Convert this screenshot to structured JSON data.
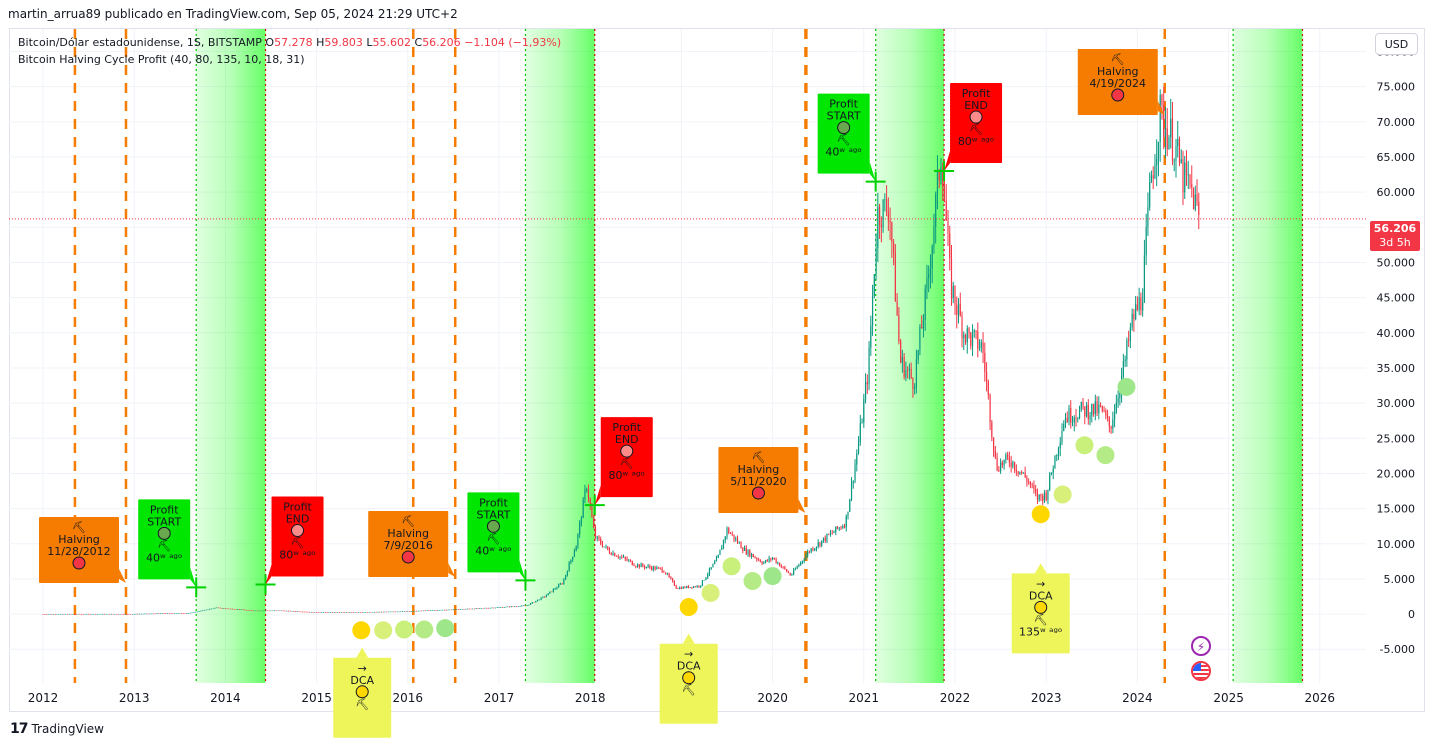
{
  "header": {
    "publisher": "martin_arrua89 publicado en TradingView.com, Sep 05, 2024 21:29 UTC+2"
  },
  "legend": {
    "symbol": "Bitcoin/Dólar estadounidense, 1S, BITSTAMP",
    "o_label": "O",
    "o_value": "57.278",
    "h_label": "H",
    "h_value": "59.803",
    "l_label": "L",
    "l_value": "55.602",
    "c_label": "C",
    "c_value": "56.206",
    "change": "−1.104 (−1,93%)",
    "indicator": "Bitcoin Halving Cycle Profit (40, 80, 135, 10, 18, 31)"
  },
  "currency_button": "USD",
  "last_price": {
    "value": "56.206",
    "countdown": "3d 5h"
  },
  "footer": {
    "logo": "17",
    "brand": "TradingView"
  },
  "colors": {
    "up": "#089981",
    "down": "#f23645",
    "halving": "#f57c00",
    "profit_start": "#00e600",
    "profit_end": "#ff0000",
    "dca": "#eef55a",
    "zone": "#00ff00",
    "axis_text": "#131722"
  },
  "icons": {
    "halving": "pickaxe-icon",
    "profit": "circle-icon",
    "dca": "arrow-right-icon",
    "flash": "lightning-icon",
    "flag": "us-flag-icon"
  },
  "chart_data": {
    "type": "candlestick",
    "title": "Bitcoin/Dólar estadounidense, 1S, BITSTAMP",
    "x_ticks": [
      "2012",
      "2013",
      "2014",
      "2015",
      "2016",
      "2017",
      "2018",
      "2019",
      "2020",
      "2021",
      "2022",
      "2023",
      "2024",
      "2025",
      "2026"
    ],
    "y_ticks": [
      "80.000",
      "75.000",
      "70.000",
      "65.000",
      "60.000",
      "55.000",
      "50.000",
      "45.000",
      "40.000",
      "35.000",
      "30.000",
      "25.000",
      "20.000",
      "15.000",
      "10.000",
      "5.000",
      "0",
      "-5.000"
    ],
    "ylim": [
      -9800,
      83200
    ],
    "price_path": [
      [
        2012.0,
        5
      ],
      [
        2012.5,
        8
      ],
      [
        2013.0,
        13
      ],
      [
        2013.3,
        100
      ],
      [
        2013.6,
        120
      ],
      [
        2013.9,
        900
      ],
      [
        2014.0,
        800
      ],
      [
        2014.3,
        500
      ],
      [
        2014.6,
        500
      ],
      [
        2015.0,
        250
      ],
      [
        2015.5,
        250
      ],
      [
        2016.0,
        400
      ],
      [
        2016.5,
        650
      ],
      [
        2017.0,
        950
      ],
      [
        2017.3,
        1200
      ],
      [
        2017.5,
        2500
      ],
      [
        2017.7,
        4500
      ],
      [
        2017.85,
        10000
      ],
      [
        2017.96,
        18500
      ],
      [
        2018.05,
        11000
      ],
      [
        2018.2,
        9000
      ],
      [
        2018.5,
        7000
      ],
      [
        2018.8,
        6300
      ],
      [
        2018.95,
        3700
      ],
      [
        2019.2,
        4000
      ],
      [
        2019.4,
        8000
      ],
      [
        2019.5,
        12000
      ],
      [
        2019.7,
        9000
      ],
      [
        2019.9,
        7300
      ],
      [
        2020.0,
        8000
      ],
      [
        2020.2,
        5500
      ],
      [
        2020.4,
        9000
      ],
      [
        2020.6,
        11000
      ],
      [
        2020.8,
        13000
      ],
      [
        2020.95,
        25000
      ],
      [
        2021.05,
        35000
      ],
      [
        2021.15,
        57000
      ],
      [
        2021.28,
        58000
      ],
      [
        2021.4,
        36000
      ],
      [
        2021.55,
        33000
      ],
      [
        2021.7,
        47000
      ],
      [
        2021.85,
        66000
      ],
      [
        2021.95,
        47000
      ],
      [
        2022.1,
        40000
      ],
      [
        2022.3,
        38000
      ],
      [
        2022.45,
        21000
      ],
      [
        2022.6,
        22000
      ],
      [
        2022.8,
        19000
      ],
      [
        2022.9,
        16500
      ],
      [
        2023.0,
        17000
      ],
      [
        2023.2,
        28000
      ],
      [
        2023.4,
        29000
      ],
      [
        2023.6,
        29000
      ],
      [
        2023.7,
        26500
      ],
      [
        2023.85,
        35000
      ],
      [
        2023.95,
        42000
      ],
      [
        2024.05,
        45000
      ],
      [
        2024.15,
        62000
      ],
      [
        2024.25,
        71000
      ],
      [
        2024.4,
        67000
      ],
      [
        2024.5,
        62000
      ],
      [
        2024.6,
        60000
      ],
      [
        2024.68,
        56206
      ]
    ],
    "halvings": [
      {
        "date": "11/28/2012",
        "x": 2012.91,
        "title": "Halving"
      },
      {
        "date": "7/9/2016",
        "x": 2016.52,
        "title": "Halving"
      },
      {
        "date": "5/11/2020",
        "x": 2020.36,
        "title": "Halving"
      },
      {
        "date": "4/19/2024",
        "x": 2024.3,
        "title": "Halving"
      }
    ],
    "extra_halving_lines": [
      2012.35,
      2016.06,
      2020.37,
      2024.3
    ],
    "profit_starts": [
      {
        "x": 2013.68,
        "price": 3800,
        "line1": "Profit",
        "line2": "START",
        "weeks": "40ʷ ᵃᵍᵒ"
      },
      {
        "x": 2017.29,
        "price": 4800,
        "line1": "Profit",
        "line2": "START",
        "weeks": "40ʷ ᵃᵍᵒ"
      },
      {
        "x": 2021.13,
        "price": 61500,
        "line1": "Profit",
        "line2": "START",
        "weeks": "40ʷ ᵃᵍᵒ"
      }
    ],
    "profit_ends": [
      {
        "x": 2014.44,
        "price": 4200,
        "line1": "Profit",
        "line2": "END",
        "weeks": "80ʷ ᵃᵍᵒ"
      },
      {
        "x": 2018.05,
        "price": 15500,
        "line1": "Profit",
        "line2": "END",
        "weeks": "80ʷ ᵃᵍᵒ"
      },
      {
        "x": 2021.88,
        "price": 63000,
        "line1": "Profit",
        "line2": "END",
        "weeks": "80ʷ ᵃᵍᵒ"
      }
    ],
    "zones": [
      [
        2013.68,
        2014.44
      ],
      [
        2017.29,
        2018.05
      ],
      [
        2021.13,
        2021.88
      ],
      [
        2025.05,
        2025.81
      ]
    ],
    "dca_labels": [
      {
        "x": 2015.5,
        "price": -6500,
        "line1": "DCA",
        "arrow": "→",
        "weeks": ""
      },
      {
        "x": 2019.08,
        "price": -4500,
        "line1": "DCA",
        "arrow": "→",
        "weeks": ""
      },
      {
        "x": 2022.94,
        "price": 5500,
        "line1": "DCA",
        "arrow": "→",
        "weeks": "135ʷ ᵃᵍᵒ"
      }
    ],
    "dca_dots": [
      {
        "x": 2015.49,
        "price": -2300,
        "color": "#ffd700"
      },
      {
        "x": 2015.73,
        "price": -2300,
        "color": "#d8f07a"
      },
      {
        "x": 2015.96,
        "price": -2200,
        "color": "#c8f07a"
      },
      {
        "x": 2016.18,
        "price": -2200,
        "color": "#b5eb86"
      },
      {
        "x": 2016.41,
        "price": -2000,
        "color": "#9ee68a"
      },
      {
        "x": 2019.08,
        "price": 1000,
        "color": "#ffd700"
      },
      {
        "x": 2019.32,
        "price": 3000,
        "color": "#d8f07a"
      },
      {
        "x": 2019.55,
        "price": 6800,
        "color": "#c8f07a"
      },
      {
        "x": 2019.78,
        "price": 4700,
        "color": "#b5eb86"
      },
      {
        "x": 2020.0,
        "price": 5400,
        "color": "#9ee68a"
      },
      {
        "x": 2022.94,
        "price": 14200,
        "color": "#ffd700"
      },
      {
        "x": 2023.18,
        "price": 17000,
        "color": "#d8f07a"
      },
      {
        "x": 2023.42,
        "price": 24000,
        "color": "#c8f07a"
      },
      {
        "x": 2023.65,
        "price": 22600,
        "color": "#b5eb86"
      },
      {
        "x": 2023.88,
        "price": 32300,
        "color": "#9ee68a"
      }
    ]
  }
}
